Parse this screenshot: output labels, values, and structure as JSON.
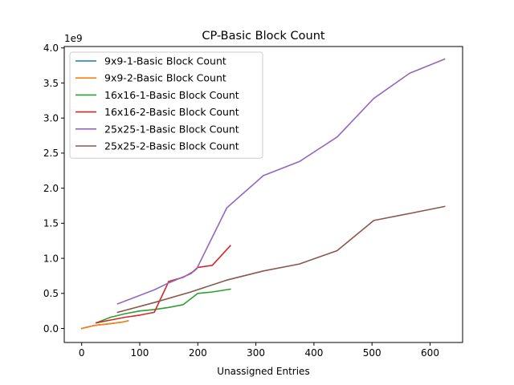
{
  "chart_data": {
    "type": "line",
    "title": "CP-Basic Block Count",
    "xlabel": "Unassigned Entries",
    "ylabel": "",
    "y_offset_text": "1e9",
    "xlim": [
      -30,
      656
    ],
    "ylim": [
      -0.2,
      4.02
    ],
    "xticks": [
      0,
      100,
      200,
      300,
      400,
      500,
      600
    ],
    "yticks": [
      0.0,
      0.5,
      1.0,
      1.5,
      2.0,
      2.5,
      3.0,
      3.5,
      4.0
    ],
    "xtick_labels": [
      "0",
      "100",
      "200",
      "300",
      "400",
      "500",
      "600"
    ],
    "ytick_labels": [
      "0.0",
      "0.5",
      "1.0",
      "1.5",
      "2.0",
      "2.5",
      "3.0",
      "3.5",
      "4.0"
    ],
    "grid": false,
    "legend_position": "top-left",
    "series": [
      {
        "name": "9x9-1-Basic Block Count",
        "color": "#1f77b4",
        "x": [
          0,
          10,
          20,
          30,
          40,
          50,
          60,
          70,
          80
        ],
        "y": [
          0.0,
          0.02,
          0.04,
          0.05,
          0.06,
          0.07,
          0.08,
          0.09,
          0.11
        ]
      },
      {
        "name": "9x9-2-Basic Block Count",
        "color": "#ff7f0e",
        "x": [
          0,
          10,
          20,
          30,
          40,
          50,
          60,
          70,
          80
        ],
        "y": [
          0.0,
          0.02,
          0.04,
          0.05,
          0.06,
          0.07,
          0.08,
          0.09,
          0.11
        ]
      },
      {
        "name": "16x16-1-Basic Block Count",
        "color": "#2ca02c",
        "x": [
          25,
          50,
          75,
          100,
          125,
          150,
          175,
          200,
          225,
          256
        ],
        "y": [
          0.08,
          0.16,
          0.21,
          0.25,
          0.27,
          0.3,
          0.34,
          0.5,
          0.52,
          0.56
        ]
      },
      {
        "name": "16x16-2-Basic Block Count",
        "color": "#d62728",
        "x": [
          25,
          50,
          75,
          100,
          125,
          150,
          175,
          190,
          200,
          225,
          256
        ],
        "y": [
          0.08,
          0.12,
          0.16,
          0.19,
          0.23,
          0.67,
          0.73,
          0.8,
          0.87,
          0.9,
          1.18
        ]
      },
      {
        "name": "25x25-1-Basic Block Count",
        "color": "#9467bd",
        "x": [
          62,
          125,
          150,
          188,
          198,
          250,
          313,
          375,
          440,
          503,
          565,
          625
        ],
        "y": [
          0.35,
          0.55,
          0.65,
          0.78,
          0.85,
          1.72,
          2.18,
          2.38,
          2.73,
          3.28,
          3.64,
          3.84
        ]
      },
      {
        "name": "25x25-2-Basic Block Count",
        "color": "#8c564b",
        "x": [
          62,
          125,
          188,
          250,
          313,
          375,
          440,
          503,
          565,
          625
        ],
        "y": [
          0.23,
          0.37,
          0.52,
          0.69,
          0.82,
          0.92,
          1.11,
          1.54,
          1.64,
          1.74
        ]
      }
    ]
  }
}
